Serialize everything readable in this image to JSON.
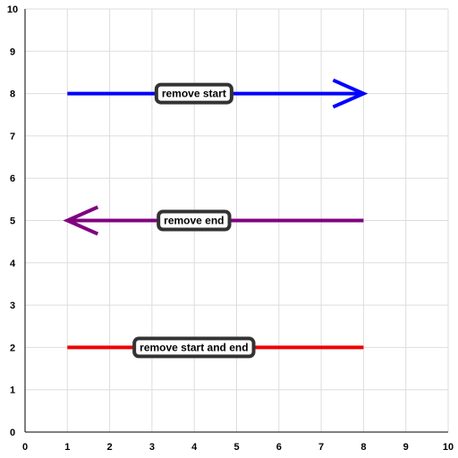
{
  "axes": {
    "x_ticks": [
      "0",
      "1",
      "2",
      "3",
      "4",
      "5",
      "6",
      "7",
      "8",
      "9",
      "10"
    ],
    "y_ticks": [
      "0",
      "1",
      "2",
      "3",
      "4",
      "5",
      "6",
      "7",
      "8",
      "9",
      "10"
    ],
    "grid": true
  },
  "chart_data": {
    "type": "line",
    "xlim": [
      0,
      10
    ],
    "ylim": [
      0,
      10
    ],
    "grid": true,
    "series": [
      {
        "name": "remove start",
        "x": [
          1,
          8
        ],
        "y": [
          8,
          8
        ],
        "color": "#0000ff",
        "arrow_at": "end"
      },
      {
        "name": "remove end",
        "x": [
          1,
          8
        ],
        "y": [
          5,
          5
        ],
        "color": "#800080",
        "arrow_at": "start"
      },
      {
        "name": "remove start and end",
        "x": [
          1,
          8
        ],
        "y": [
          2,
          2
        ],
        "color": "#ee0000",
        "arrow_at": "none"
      }
    ]
  },
  "labels": {
    "remove_start": "remove start",
    "remove_end": "remove end",
    "remove_start_and_end": "remove start and end"
  },
  "colors": {
    "grid": "#dddddd",
    "axis": "#000000",
    "label_border": "#333333"
  }
}
